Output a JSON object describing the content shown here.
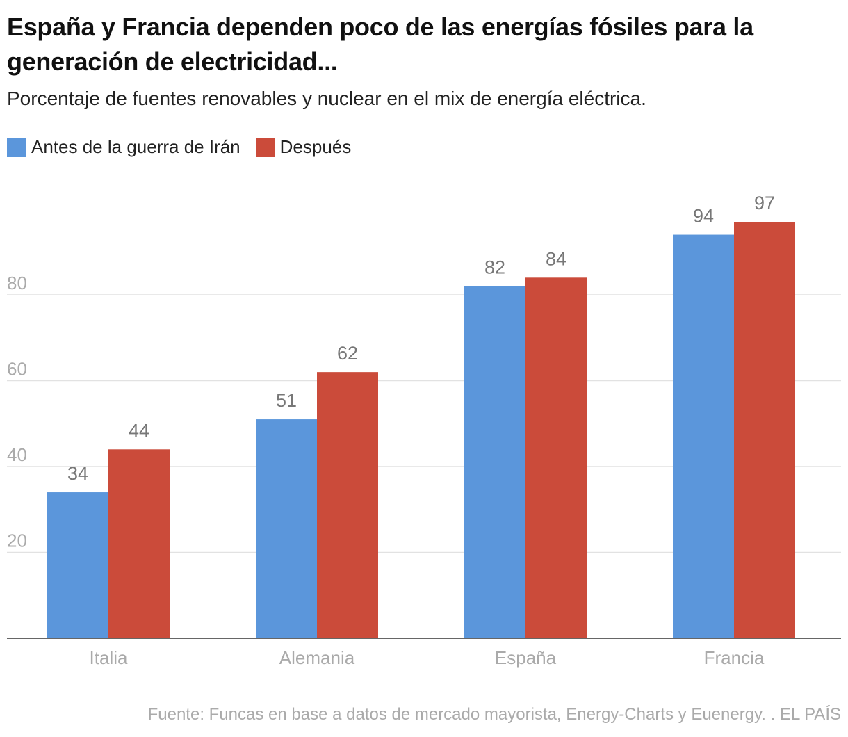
{
  "title": "España y Francia dependen poco de las energías fósiles para la generación de electricidad...",
  "subtitle": "Porcentaje de fuentes renovables y nuclear en el mix de energía eléctrica.",
  "footer": "Fuente: Funcas en base a datos de mercado mayorista, Energy-Charts y Euenergy. . EL PAÍS",
  "chart_data": {
    "type": "bar",
    "categories": [
      "Italia",
      "Alemania",
      "España",
      "Francia"
    ],
    "series": [
      {
        "name": "Antes de la guerra de Irán",
        "color": "#5b96db",
        "values": [
          34,
          51,
          82,
          94
        ]
      },
      {
        "name": "Después",
        "color": "#cb4b3a",
        "values": [
          44,
          62,
          84,
          97
        ]
      }
    ],
    "yticks": [
      20,
      40,
      60,
      80
    ],
    "ylim": [
      0,
      100
    ],
    "grid": true,
    "legend": "top-left",
    "data_labels": true
  }
}
